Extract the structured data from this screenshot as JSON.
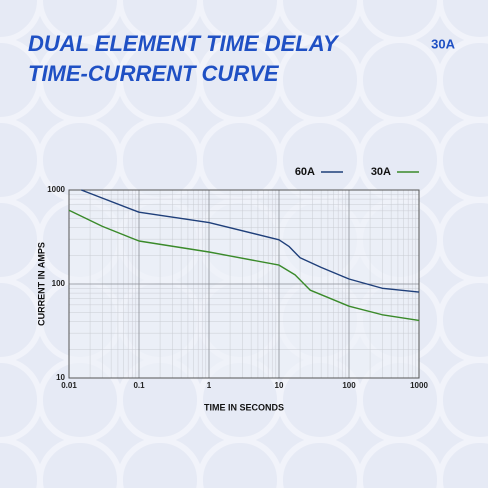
{
  "chart_data": {
    "type": "line",
    "title": [
      "DUAL ELEMENT TIME DELAY",
      "TIME-CURRENT CURVE"
    ],
    "annotation": "30A",
    "x_label": "TIME IN SECONDS",
    "y_label": "CURRENT IN AMPS",
    "log_x": true,
    "log_y": true,
    "grid": true,
    "legend": "top-right",
    "xlim": [
      0.01,
      1000
    ],
    "xticks": [
      0.01,
      0.1,
      1,
      10,
      100,
      1000
    ],
    "ylim": [
      10,
      1000
    ],
    "yticks": [
      10,
      100,
      1000
    ],
    "series": [
      {
        "name": "60A",
        "color": "#1f3f7a",
        "x": [
          0.015,
          0.1,
          1,
          10,
          14,
          20,
          40,
          100,
          300,
          1000
        ],
        "values": [
          1000,
          580,
          450,
          295,
          250,
          190,
          150,
          113,
          90,
          82
        ]
      },
      {
        "name": "30A",
        "color": "#3a8a2a",
        "x": [
          0.01,
          0.03,
          0.1,
          1,
          10,
          17,
          28,
          100,
          300,
          1000
        ],
        "values": [
          610,
          410,
          287,
          219,
          159,
          125,
          86,
          58,
          47,
          41
        ]
      }
    ]
  }
}
